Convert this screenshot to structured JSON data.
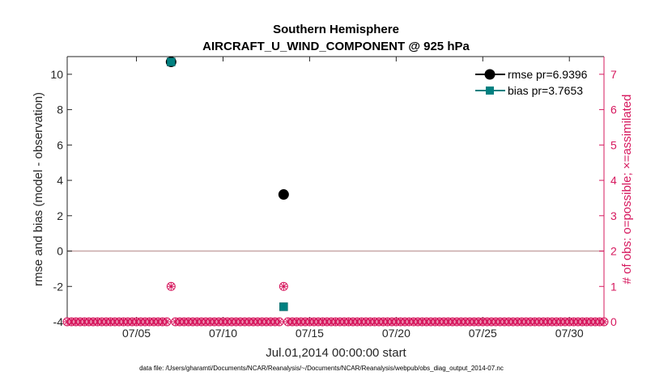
{
  "chart_data": {
    "type": "scatter",
    "title_line1": "Southern Hemisphere",
    "title_line2": "AIRCRAFT_U_WIND_COMPONENT @ 925 hPa",
    "xlabel": "Jul.01,2014 00:00:00 start",
    "ylabel_left": "rmse and bias (model - observation)",
    "ylabel_right": "# of obs: o=possible; ×=assimilated",
    "xlim": [
      1,
      32
    ],
    "ylim_left": [
      -4,
      11
    ],
    "ylim_right": [
      0,
      7.5
    ],
    "x_ticks": [
      {
        "value": 5,
        "label": "07/05"
      },
      {
        "value": 10,
        "label": "07/10"
      },
      {
        "value": 15,
        "label": "07/15"
      },
      {
        "value": 20,
        "label": "07/20"
      },
      {
        "value": 25,
        "label": "07/25"
      },
      {
        "value": 30,
        "label": "07/30"
      }
    ],
    "y_ticks_left": [
      {
        "value": -4,
        "label": "-4"
      },
      {
        "value": -2,
        "label": "-2"
      },
      {
        "value": 0,
        "label": "0"
      },
      {
        "value": 2,
        "label": "2"
      },
      {
        "value": 4,
        "label": "4"
      },
      {
        "value": 6,
        "label": "6"
      },
      {
        "value": 8,
        "label": "8"
      },
      {
        "value": 10,
        "label": "10"
      }
    ],
    "y_ticks_right": [
      {
        "value": 0,
        "label": "0"
      },
      {
        "value": 1,
        "label": "1"
      },
      {
        "value": 2,
        "label": "2"
      },
      {
        "value": 3,
        "label": "3"
      },
      {
        "value": 4,
        "label": "4"
      },
      {
        "value": 5,
        "label": "5"
      },
      {
        "value": 6,
        "label": "6"
      },
      {
        "value": 7,
        "label": "7"
      }
    ],
    "series": [
      {
        "name": "rmse",
        "legend": "rmse pr=6.9396",
        "color": "#000000",
        "points": [
          {
            "x": 7,
            "y": 10.7
          },
          {
            "x": 13.5,
            "y": 3.2
          }
        ]
      },
      {
        "name": "bias",
        "legend": "bias pr=3.7653",
        "color": "#008080",
        "points": [
          {
            "x": 7,
            "y": 10.7
          },
          {
            "x": 13.5,
            "y": -3.15
          }
        ]
      }
    ],
    "obs_counts": {
      "color": "#d6185e",
      "x_start": 1,
      "x_end": 32,
      "x_step": 0.25,
      "nonzero": [
        {
          "x": 7,
          "possible": 1,
          "assimilated": 1
        },
        {
          "x": 13.5,
          "possible": 1,
          "assimilated": 1
        }
      ]
    },
    "zero_line_color": "#c8a8a8",
    "footnote": "data file: /Users/gharamti/Documents/NCAR/Reanalysis/~/Documents/NCAR/Reanalysis/webpub/obs_diag_output_2014-07.nc"
  }
}
